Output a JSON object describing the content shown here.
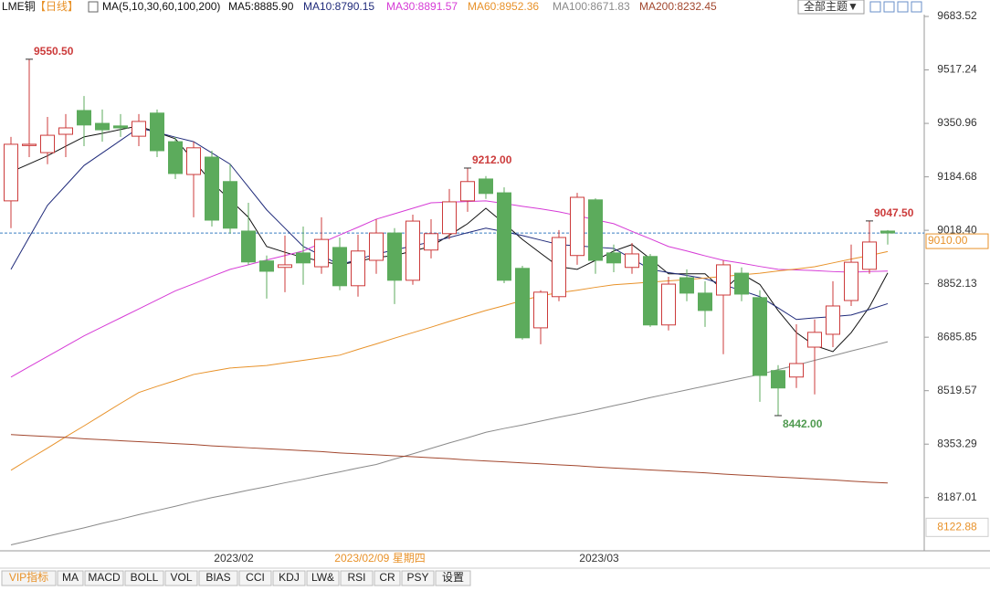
{
  "chart_data": {
    "type": "candlestick",
    "title": "LME铜",
    "period": "【日线】",
    "ma_title": "MA(5,10,30,60,100,200)",
    "theme_button": "全部主题▼",
    "up_color": "#cc3b3b",
    "down_color": "#5cab5c",
    "categories": [
      null,
      null,
      null,
      null,
      null,
      null,
      null,
      null,
      null,
      null,
      null,
      null,
      "2023/02",
      null,
      null,
      null,
      null,
      null,
      null,
      null,
      "2023/02/09 星期四",
      null,
      null,
      null,
      null,
      null,
      null,
      null,
      null,
      null,
      null,
      null,
      "2023/03",
      null,
      null,
      null,
      null,
      null,
      null,
      null,
      null,
      null,
      null,
      null,
      null,
      null,
      null,
      null,
      null
    ],
    "cursor_index": 20,
    "open": [
      9110,
      9282,
      9260,
      9317,
      9391,
      9351,
      9343,
      9311,
      9383,
      9294,
      9192,
      9246,
      9170,
      9016,
      8923,
      8903,
      8948,
      8905,
      8965,
      8846,
      8925,
      9010,
      8863,
      8957,
      9008,
      9110,
      9178,
      9135,
      8900,
      8715,
      8812,
      8940,
      9113,
      8948,
      8903,
      8937,
      8724,
      8871,
      8823,
      8817,
      8885,
      8809,
      8582,
      8562,
      8655,
      8695,
      8800,
      8897,
      9016
    ],
    "high": [
      9309,
      9550.5,
      9371,
      9380,
      9436,
      9394,
      9380,
      9380,
      9394,
      9309,
      9294,
      9266,
      9224,
      9104,
      8940,
      9002,
      9030,
      9059,
      8996,
      9005,
      9053,
      9025,
      9067,
      9053,
      9147,
      9212,
      9187,
      9152,
      8908,
      8832,
      9019,
      9135,
      9118,
      8974,
      8979,
      8945,
      8874,
      8897,
      8860,
      8925,
      8903,
      8832,
      8599,
      8726,
      8741,
      8860,
      8974,
      9047.5,
      9019
    ],
    "low": [
      9025,
      9246,
      9224,
      9246,
      9280,
      9294,
      9309,
      9280,
      9246,
      9178,
      9059,
      9030,
      9008,
      8911,
      8806,
      8826,
      8849,
      8883,
      8832,
      8812,
      8883,
      8789,
      8849,
      8931,
      8991,
      9076,
      9116,
      8854,
      8678,
      8664,
      8798,
      8911,
      8883,
      8888,
      8883,
      8718,
      8707,
      8798,
      8718,
      8633,
      8798,
      8485,
      8442,
      8528,
      8508,
      8655,
      8783,
      8883,
      8974
    ],
    "close": [
      9286,
      9286,
      9314,
      9337,
      9346,
      9331,
      9337,
      9357,
      9266,
      9195,
      9275,
      9050,
      9025,
      8920,
      8891,
      8911,
      8917,
      8990,
      8846,
      8954,
      9010,
      8863,
      9047,
      9008,
      9107,
      9170,
      9133,
      8863,
      8684,
      8826,
      8996,
      9121,
      8925,
      8917,
      8945,
      8724,
      8851,
      8823,
      8769,
      8911,
      8820,
      8567,
      8528,
      8604,
      8701,
      8783,
      8919,
      8982,
      9010
    ],
    "series": [
      {
        "label": "MA5:8885.90",
        "color": "#111111",
        "values": [
          9200,
          9225,
          9250,
          9280,
          9309,
          9320,
          9332,
          9343,
          9323,
          9303,
          9235,
          9167,
          9113,
          9059,
          8968,
          8950,
          8934,
          8922,
          8911,
          8922,
          8934,
          8940,
          8954,
          8968,
          9003,
          9039,
          9087,
          9040,
          8990,
          8947,
          8905,
          8897,
          8925,
          8954,
          8974,
          8930,
          8883,
          8883,
          8883,
          8832,
          8883,
          8850,
          8769,
          8700,
          8660,
          8641,
          8700,
          8780,
          8885.9
        ]
      },
      {
        "label": "MA10:8790.15",
        "color": "#1f2a7a",
        "values": [
          8897,
          8997,
          9096,
          9158,
          9220,
          9259,
          9298,
          9337,
          9323,
          9308,
          9294,
          9259,
          9224,
          9153,
          9082,
          9025,
          8968,
          8940,
          8911,
          8928,
          8945,
          8957,
          8970,
          8982,
          8996,
          9011,
          9025,
          9014,
          9002,
          8988,
          8974,
          8970,
          8966,
          8962,
          8930,
          8897,
          8887,
          8878,
          8868,
          8849,
          8831,
          8812,
          8777,
          8741,
          8746,
          8750,
          8755,
          8772,
          8790.15
        ]
      },
      {
        "label": "MA30:8891.57",
        "color": "#d63bd6",
        "values": [
          8562,
          8594,
          8626,
          8658,
          8690,
          8718,
          8746,
          8774,
          8802,
          8830,
          8852,
          8875,
          8897,
          8911,
          8926,
          8940,
          8954,
          8979,
          9004,
          9028,
          9053,
          9070,
          9087,
          9104,
          9106,
          9108,
          9110,
          9102,
          9093,
          9085,
          9076,
          9064,
          9051,
          9039,
          9015,
          8992,
          8968,
          8954,
          8939,
          8925,
          8916,
          8906,
          8897,
          8895,
          8893,
          8890,
          8888,
          8890,
          8891.57
        ]
      },
      {
        "label": "MA60:8952.36",
        "color": "#e8922a",
        "values": [
          8272,
          8307,
          8341,
          8376,
          8410,
          8445,
          8480,
          8514,
          8533,
          8551,
          8570,
          8580,
          8590,
          8594,
          8598,
          8606,
          8614,
          8622,
          8630,
          8648,
          8665,
          8683,
          8700,
          8717,
          8735,
          8752,
          8769,
          8784,
          8800,
          8815,
          8824,
          8832,
          8841,
          8849,
          8853,
          8857,
          8861,
          8865,
          8870,
          8875,
          8880,
          8885,
          8892,
          8898,
          8905,
          8917,
          8929,
          8940,
          8952.36
        ]
      },
      {
        "label": "MA100:8671.83",
        "color": "#8a8a8a",
        "values": [
          8040,
          8053,
          8067,
          8080,
          8093,
          8107,
          8120,
          8134,
          8147,
          8160,
          8174,
          8187,
          8198,
          8210,
          8221,
          8233,
          8244,
          8256,
          8267,
          8279,
          8290,
          8307,
          8323,
          8340,
          8357,
          8373,
          8390,
          8402,
          8413,
          8425,
          8437,
          8448,
          8460,
          8473,
          8485,
          8498,
          8510,
          8522,
          8534,
          8546,
          8558,
          8570,
          8585,
          8599,
          8614,
          8628,
          8643,
          8657,
          8671.83
        ]
      },
      {
        "label": "MA200:8232.45",
        "color": "#a2472e",
        "values": [
          8383,
          8380,
          8377,
          8374,
          8370,
          8367,
          8364,
          8361,
          8358,
          8355,
          8352,
          8348,
          8345,
          8342,
          8339,
          8336,
          8333,
          8330,
          8326,
          8323,
          8320,
          8317,
          8314,
          8311,
          8308,
          8304,
          8301,
          8298,
          8295,
          8292,
          8289,
          8286,
          8282,
          8279,
          8276,
          8273,
          8270,
          8267,
          8264,
          8260,
          8257,
          8254,
          8251,
          8248,
          8245,
          8242,
          8238,
          8235,
          8232.45
        ]
      }
    ],
    "annotations": [
      {
        "value": 9550.5,
        "label": "9550.50",
        "color": "#cc3b3b"
      },
      {
        "value": 9212,
        "label": "9212.00",
        "color": "#cc3b3b"
      },
      {
        "value": 9047.5,
        "label": "9047.50",
        "color": "#cc3b3b"
      },
      {
        "value": 8442,
        "label": "8442.00",
        "color": "#4f9a4f"
      }
    ],
    "ylim": [
      8030,
      9712
    ],
    "yticks": [
      9683.52,
      9517.24,
      9350.96,
      9184.68,
      {
        "value": 9018.4,
        "label": "9018.40"
      },
      8852.13,
      8685.85,
      8519.57,
      8353.29,
      8187.01
    ],
    "low_marker": 8122.88,
    "current_price": {
      "value": 9010,
      "label": "9010.00"
    },
    "tabs": [
      "VIP指标",
      "MA",
      "MACD",
      "BOLL",
      "VOL",
      "BIAS",
      "CCI",
      "KDJ",
      "LW&",
      "RSI",
      "CR",
      "PSY",
      "设置"
    ]
  }
}
